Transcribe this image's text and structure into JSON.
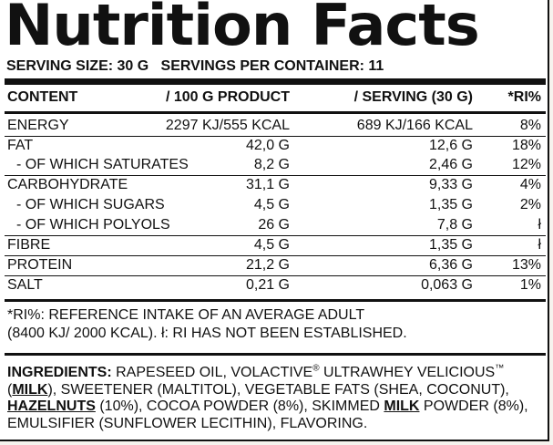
{
  "title": "Nutrition Facts",
  "serving_line": "SERVING SIZE: 30 G   SERVINGS PER CONTAINER: 11",
  "table": {
    "headers": {
      "content": "CONTENT",
      "per100": "/ 100 G PRODUCT",
      "perServing": "/ SERVING (30 G)",
      "ri": "*RI%"
    },
    "rows": [
      {
        "name": "ENERGY",
        "per100": "2297 KJ/555 KCAL",
        "perServing": "689 KJ/166 KCAL",
        "ri": "8%"
      },
      {
        "name": "FAT",
        "per100": "42,0 G",
        "perServing": "12,6 G",
        "ri": "18%"
      },
      {
        "name": "- OF WHICH SATURATES",
        "per100": "8,2 G",
        "perServing": "2,46 G",
        "ri": "12%"
      },
      {
        "name": "CARBOHYDRATE",
        "per100": "31,1 G",
        "perServing": "9,33 G",
        "ri": "4%"
      },
      {
        "name": "- OF WHICH SUGARS",
        "per100": "4,5 G",
        "perServing": "1,35 G",
        "ri": "2%"
      },
      {
        "name": "- OF WHICH POLYOLS",
        "per100": "26 G",
        "perServing": "7,8 G",
        "ri": "ł"
      },
      {
        "name": "FIBRE",
        "per100": "4,5 G",
        "perServing": "1,35 G",
        "ri": "ł"
      },
      {
        "name": "PROTEIN",
        "per100": "21,2 G",
        "perServing": "6,36 G",
        "ri": "13%"
      },
      {
        "name": "SALT",
        "per100": "0,21 G",
        "perServing": "0,063 G",
        "ri": "1%"
      }
    ]
  },
  "footnote": {
    "line1": "*RI%: REFERENCE INTAKE OF AN AVERAGE ADULT",
    "line2": "(8400 KJ/ 2000 KCAL). ł: RI HAS NOT BEEN ESTABLISHED."
  },
  "ingredients": {
    "label": "INGREDIENTS:",
    "t1": " RAPESEED OIL, VOLACTIVE",
    "reg": "®",
    "t2": " ULTRAWHEY VELICIOUS",
    "tm": "™",
    "t3": " (",
    "milk1": "MILK",
    "t4": "), SWEETENER (MALTITOL), VEGETABLE FATS (SHEA, COCONUT), ",
    "hazelnuts": "HAZELNUTS",
    "t5": " (10%), COCOA POWDER (8%), SKIMMED ",
    "milk2": "MILK",
    "t6": " POWDER (8%), EMULSIFIER (SUNFLOWER LECITHIN), FLAVORING."
  }
}
